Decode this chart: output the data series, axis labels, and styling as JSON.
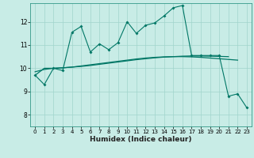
{
  "title": "",
  "xlabel": "Humidex (Indice chaleur)",
  "xlim": [
    -0.5,
    23.5
  ],
  "ylim": [
    7.5,
    12.8
  ],
  "yticks": [
    8,
    9,
    10,
    11,
    12
  ],
  "xticks": [
    0,
    1,
    2,
    3,
    4,
    5,
    6,
    7,
    8,
    9,
    10,
    11,
    12,
    13,
    14,
    15,
    16,
    17,
    18,
    19,
    20,
    21,
    22,
    23
  ],
  "bg_color": "#c8ece6",
  "grid_color": "#a0d4cc",
  "line_color": "#007766",
  "line1": [
    9.7,
    9.3,
    10.0,
    9.9,
    11.55,
    11.8,
    10.7,
    11.05,
    10.8,
    11.1,
    12.0,
    11.5,
    11.85,
    11.95,
    12.25,
    12.6,
    12.7,
    10.55,
    10.55,
    10.55,
    10.55,
    8.8,
    8.9,
    8.3
  ],
  "line2": [
    9.7,
    10.0,
    10.0,
    10.02,
    10.05,
    10.08,
    10.12,
    10.17,
    10.22,
    10.27,
    10.32,
    10.37,
    10.41,
    10.45,
    10.48,
    10.5,
    10.52,
    10.53,
    10.53,
    10.52,
    10.51,
    10.5,
    null,
    null
  ],
  "line3": [
    9.85,
    9.95,
    10.0,
    10.02,
    10.05,
    10.1,
    10.15,
    10.2,
    10.25,
    10.3,
    10.35,
    10.4,
    10.44,
    10.47,
    10.49,
    10.5,
    10.5,
    10.49,
    10.47,
    10.44,
    10.41,
    10.38,
    10.35,
    null
  ]
}
